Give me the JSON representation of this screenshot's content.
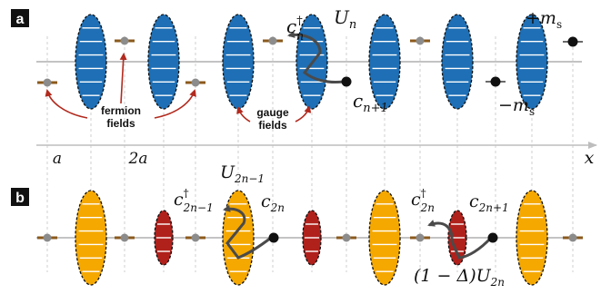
{
  "panel_a": {
    "letter": "a",
    "labels": {
      "c_dag": "c",
      "c_dag_sup": "†",
      "c_dag_sub": "n",
      "U": "U",
      "U_sub": "n",
      "c_next": "c",
      "c_next_sub": "n+1",
      "plus_m": "+m",
      "plus_m_sub": "s",
      "minus_m": "−m",
      "minus_m_sub": "s",
      "fermion_line1": "fermion",
      "fermion_line2": "fields",
      "gauge_line1": "gauge",
      "gauge_line2": "fields"
    },
    "axis": {
      "tick_a": "a",
      "tick_2a": "2a",
      "x_label": "x"
    }
  },
  "panel_b": {
    "letter": "b",
    "labels": {
      "U2n1": "U",
      "U2n1_sub": "2n−1",
      "c2n1_dag": "c",
      "c2n1_dag_sup": "†",
      "c2n1_dag_sub": "2n−1",
      "c2n": "c",
      "c2n_sub": "2n",
      "c2n_dag": "c",
      "c2n_dag_sup": "†",
      "c2n_dag_sub": "2n",
      "c2n_plus1": "c",
      "c2n_plus1_sub": "2n+1",
      "U2n_prefix": "(1 − Δ)U",
      "U2n_sub": "2n"
    }
  },
  "colors": {
    "blue_gauge": "#1E6FB5",
    "orange_gauge": "#F5A800",
    "red_gauge": "#B0211C",
    "fermion_bar": "#8B5A1C",
    "fermion_dot": "#8C8C8C",
    "dark_dot": "#111111",
    "arrow_dark": "#4A4A4A",
    "arrow_red": "#B22A1E",
    "line_gray": "#AFAFAF"
  }
}
